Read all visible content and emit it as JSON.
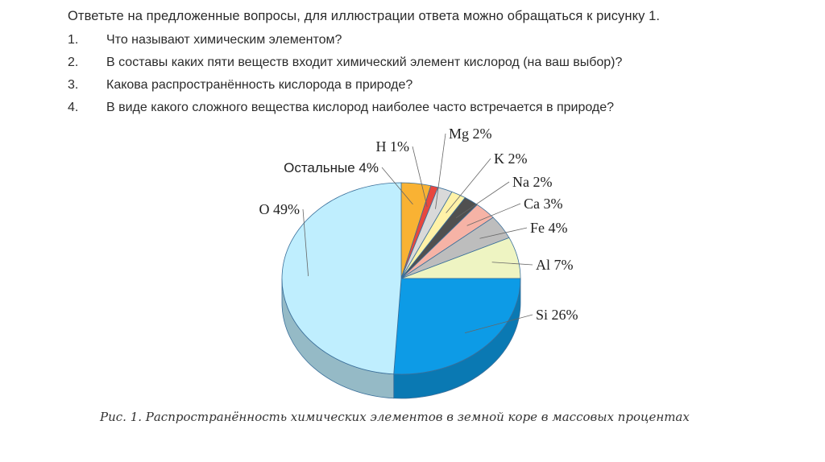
{
  "question_block": {
    "intro": "Ответьте на предложенные вопросы, для иллюстрации ответа можно обращаться к рисунку 1.",
    "questions": [
      {
        "num": "1.",
        "text": "Что называют химическим элементом?"
      },
      {
        "num": "2.",
        "text": "В составы каких пяти веществ входит химический элемент кислород (на ваш выбор)?"
      },
      {
        "num": "3.",
        "text": "Какова распространённость кислорода в природе?"
      },
      {
        "num": "4.",
        "text": "В виде какого сложного вещества кислород наиболее часто встречается в природе?"
      }
    ]
  },
  "chart_data": {
    "type": "pie",
    "title": "",
    "caption": "Рис. 1. Распространённость химических элементов в земной коре в массовых процентах",
    "slices": [
      {
        "label": "Остальные 4%",
        "name": "Остальные",
        "value": 4,
        "color": "#f9b233"
      },
      {
        "label": "H 1%",
        "name": "H",
        "value": 1,
        "color": "#e8473e"
      },
      {
        "label": "Mg 2%",
        "name": "Mg",
        "value": 2,
        "color": "#d9d9d9"
      },
      {
        "label": "K 2%",
        "name": "K",
        "value": 2,
        "color": "#fff2a8"
      },
      {
        "label": "Na 2%",
        "name": "Na",
        "value": 2,
        "color": "#505050"
      },
      {
        "label": "Ca 3%",
        "name": "Ca",
        "value": 3,
        "color": "#f6b3a6"
      },
      {
        "label": "Fe 4%",
        "name": "Fe",
        "value": 4,
        "color": "#bdbdbd"
      },
      {
        "label": "Al 7%",
        "name": "Al",
        "value": 7,
        "color": "#eef4c2"
      },
      {
        "label": "Si 26%",
        "name": "Si",
        "value": 26,
        "color": "#0d9be6"
      },
      {
        "label": "O 49%",
        "name": "O",
        "value": 49,
        "color": "#bfeefe"
      }
    ]
  }
}
